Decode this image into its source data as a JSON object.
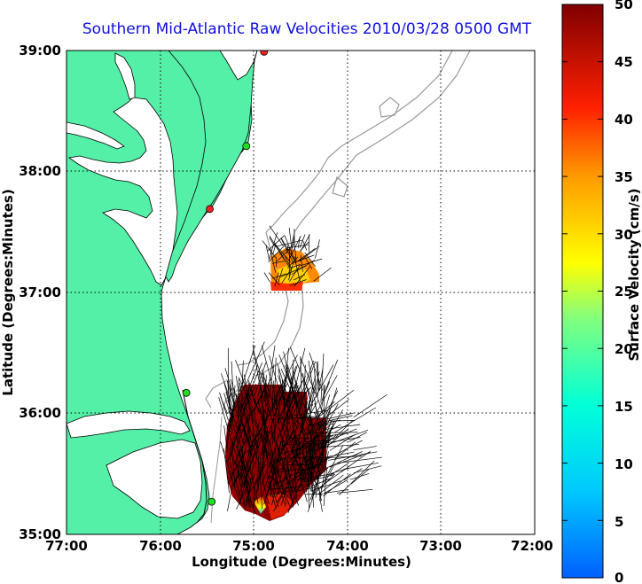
{
  "title": "Southern Mid-Atlantic Raw Velocities 2010/03/28 0500 GMT",
  "axes": {
    "xlabel": "Longitude (Degrees:Minutes)",
    "ylabel": "Latitude (Degrees:Minutes)",
    "xticks": [
      "77:00",
      "76:00",
      "75:00",
      "74:00",
      "73:00",
      "72:00"
    ],
    "yticks": [
      "39:00",
      "38:00",
      "37:00",
      "36:00",
      "35:00"
    ],
    "xlim": [
      -77,
      -72
    ],
    "ylim": [
      35,
      39
    ],
    "grid": "dotted"
  },
  "colorbar": {
    "label": "Surface Velocity (cm/s)",
    "ticks": [
      "50",
      "45",
      "40",
      "35",
      "30",
      "25",
      "20",
      "15",
      "10",
      "5",
      "0"
    ],
    "range": [
      0,
      50
    ],
    "colormap": "jet"
  },
  "colors": {
    "land": "#55f0a8",
    "water": "#ffffff",
    "coastline": "#000000",
    "bathymetry": "#999999",
    "title": "#1010e0",
    "station_green": "#22dd22",
    "station_red": "#ee2222"
  },
  "stations": [
    {
      "lon": -74.89,
      "lat": 38.99,
      "status": "red"
    },
    {
      "lon": -75.08,
      "lat": 38.21,
      "status": "green"
    },
    {
      "lon": -75.47,
      "lat": 37.69,
      "status": "red"
    },
    {
      "lon": -75.72,
      "lat": 36.17,
      "status": "green"
    },
    {
      "lon": -75.45,
      "lat": 35.27,
      "status": "green"
    }
  ]
}
